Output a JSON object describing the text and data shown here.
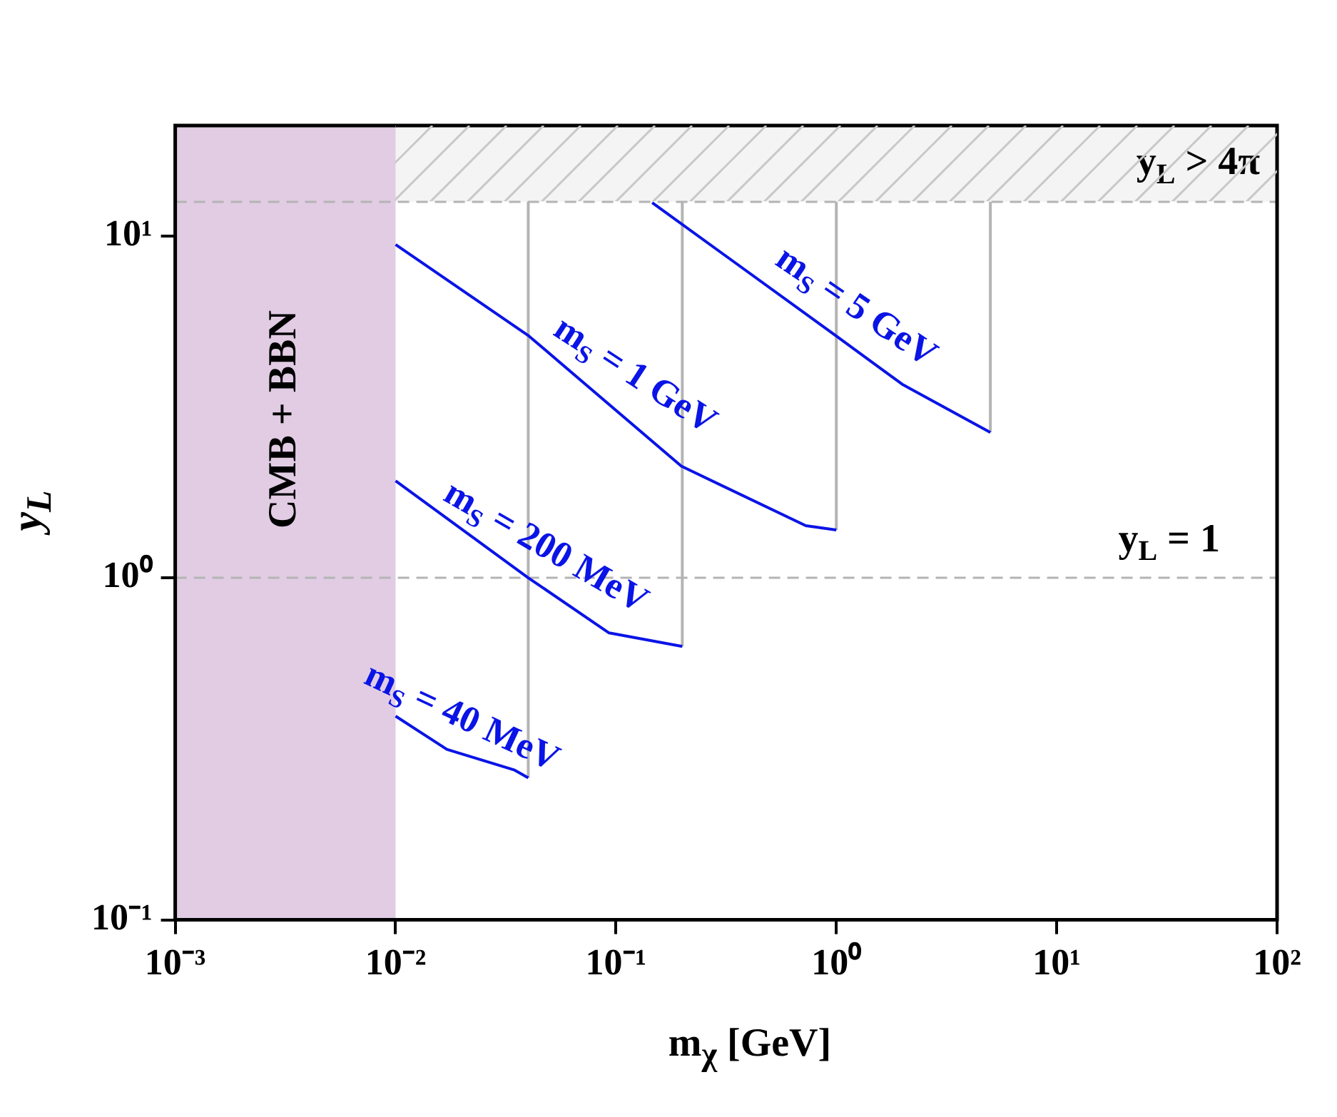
{
  "chart_data": {
    "type": "line",
    "xlabel": "m$_{χ}$ [GeV]",
    "ylabel": "y$_{L}$",
    "xlim": [
      0.001,
      100
    ],
    "ylim": [
      0.1,
      21
    ],
    "xticks": [
      {
        "value": 0.001,
        "label": "10⁻³"
      },
      {
        "value": 0.01,
        "label": "10⁻²"
      },
      {
        "value": 0.1,
        "label": "10⁻¹"
      },
      {
        "value": 1,
        "label": "10⁰"
      },
      {
        "value": 10,
        "label": "10¹"
      },
      {
        "value": 100,
        "label": "10²"
      }
    ],
    "yticks": [
      {
        "value": 0.1,
        "label": "10⁻¹"
      },
      {
        "value": 1,
        "label": "10⁰"
      },
      {
        "value": 10,
        "label": "10¹"
      }
    ],
    "log": "xy",
    "grid": false,
    "legend": false,
    "marker": "none",
    "line_style": "solid",
    "series": [
      {
        "color": "#0a14e6",
        "x": [
          0.01,
          0.0171,
          0.0347,
          0.04
        ],
        "values": [
          0.394,
          0.315,
          0.274,
          0.26
        ]
      },
      {
        "color": "#0a14e6",
        "x": [
          0.01,
          0.04,
          0.093,
          0.2
        ],
        "values": [
          1.92,
          1.0,
          0.69,
          0.63
        ]
      },
      {
        "color": "#0a14e6",
        "x": [
          0.01,
          0.0403,
          0.198,
          0.727,
          1
        ],
        "values": [
          9.42,
          5.09,
          2.12,
          1.42,
          1.38
        ]
      },
      {
        "color": "#0a14e6",
        "x": [
          0.146,
          1.0,
          1.99,
          5
        ],
        "values": [
          12.5,
          5.09,
          3.68,
          2.66
        ]
      },
      {
        "color": "#b4b4b4",
        "x": [
          0.04,
          0.04
        ],
        "values": [
          0.26,
          12.57
        ]
      },
      {
        "color": "#b4b4b4",
        "x": [
          0.2,
          0.2
        ],
        "values": [
          0.63,
          12.57
        ]
      },
      {
        "color": "#b4b4b4",
        "x": [
          1,
          1
        ],
        "values": [
          1.38,
          12.57
        ]
      },
      {
        "color": "#b4b4b4",
        "x": [
          5,
          5
        ],
        "values": [
          2.66,
          12.57
        ]
      }
    ],
    "annotations": [
      {
        "text": "m$_{S}$ = 40 MeV",
        "x": 0.0171,
        "y": 0.315
      },
      {
        "text": "m$_{S}$ = 200 MeV",
        "x": 0.04,
        "y": 1.0
      },
      {
        "text": "m$_{S}$ = 1 GeV",
        "x": 0.1,
        "y": 3.2
      },
      {
        "text": "m$_{S}$ = 5 GeV",
        "x": 1.0,
        "y": 5.09
      }
    ],
    "bands": [
      {
        "axis": "y",
        "from": 12.57,
        "to": 21,
        "label": "y$_{L}$ > 4π",
        "color": "#c8c8c8"
      },
      {
        "axis": "x",
        "from": 0.001,
        "to": 0.01,
        "label": "CMB + BBN",
        "color": "#e1cce4"
      }
    ],
    "ref_lines": [
      {
        "axis": "y",
        "value": 1,
        "label": "y$_{L}$ = 1",
        "color": "#b4b4b4",
        "line_style": "dashed"
      },
      {
        "axis": "y",
        "value": 12.57,
        "label": null,
        "color": "#b4b4b4",
        "line_style": "dashed"
      }
    ]
  }
}
